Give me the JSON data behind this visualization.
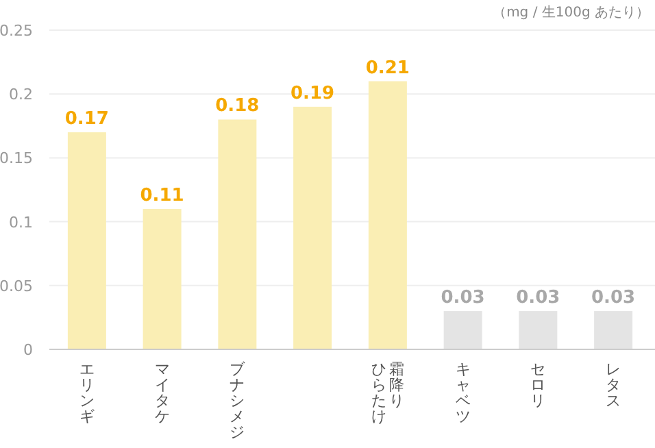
{
  "chart_data": {
    "type": "bar",
    "categories": [
      "エリンギ",
      "マイタケ",
      "ブナシメジ",
      null,
      "霜降りひらたけ",
      "キャベツ",
      "セロリ",
      "レタス"
    ],
    "values": [
      0.17,
      0.11,
      0.18,
      0.19,
      0.21,
      0.03,
      0.03,
      0.03
    ],
    "colors": [
      "#faeeb4",
      "#faeeb4",
      "#faeeb4",
      "#faeeb4",
      "#faeeb4",
      "#e4e4e4",
      "#e4e4e4",
      "#e4e4e4"
    ],
    "ylim": [
      0,
      0.25
    ],
    "yticks": [
      0,
      0.05,
      0.1,
      0.15,
      0.2,
      0.25
    ],
    "grid": "y",
    "data_labels": true,
    "annotations": [
      "（mg / 生100g あたり）"
    ]
  }
}
